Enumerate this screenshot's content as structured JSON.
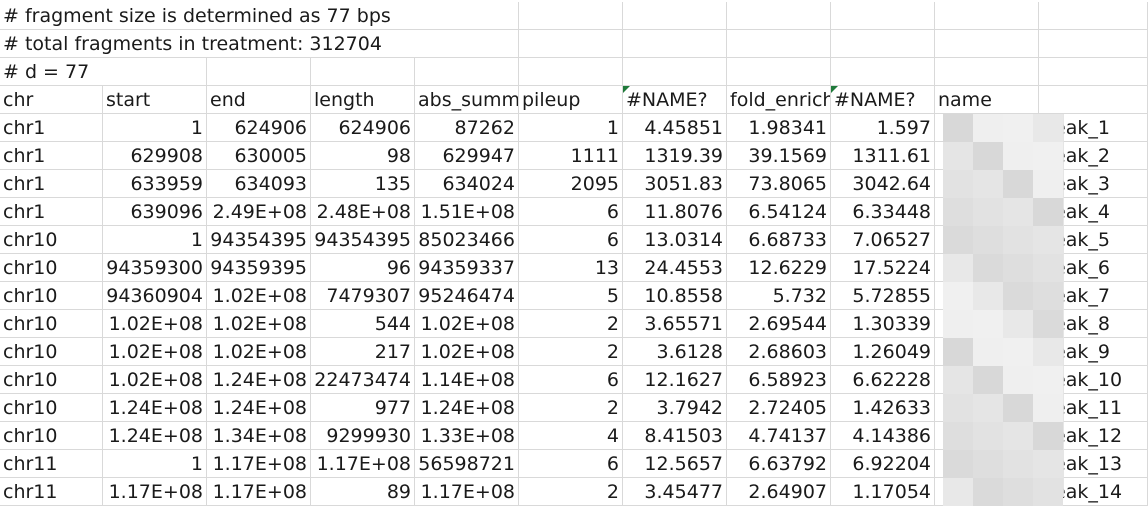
{
  "sheet": {
    "header_lines": [
      "# fragment size is determined as 77 bps",
      "# total fragments in treatment: 312704",
      "# d = 77"
    ],
    "columns": [
      "chr",
      "start",
      "end",
      "length",
      "abs_summ",
      "pileup",
      "#NAME?",
      "fold_enrich",
      "#NAME?",
      "name"
    ],
    "error_cells_marked": [
      6,
      8
    ],
    "rows": [
      [
        "chr1",
        "1",
        "624906",
        "624906",
        "87262",
        "1",
        "4.45851",
        "1.98341",
        "1.597",
        "peak_1"
      ],
      [
        "chr1",
        "629908",
        "630005",
        "98",
        "629947",
        "1111",
        "1319.39",
        "39.1569",
        "1311.61",
        "peak_2"
      ],
      [
        "chr1",
        "633959",
        "634093",
        "135",
        "634024",
        "2095",
        "3051.83",
        "73.8065",
        "3042.64",
        "peak_3"
      ],
      [
        "chr1",
        "639096",
        "2.49E+08",
        "2.48E+08",
        "1.51E+08",
        "6",
        "11.8076",
        "6.54124",
        "6.33448",
        "peak_4"
      ],
      [
        "chr10",
        "1",
        "94354395",
        "94354395",
        "85023466",
        "6",
        "13.0314",
        "6.68733",
        "7.06527",
        "peak_5"
      ],
      [
        "chr10",
        "94359300",
        "94359395",
        "96",
        "94359337",
        "13",
        "24.4553",
        "12.6229",
        "17.5224",
        "peak_6"
      ],
      [
        "chr10",
        "94360904",
        "1.02E+08",
        "7479307",
        "95246474",
        "5",
        "10.8558",
        "5.732",
        "5.72855",
        "peak_7"
      ],
      [
        "chr10",
        "1.02E+08",
        "1.02E+08",
        "544",
        "1.02E+08",
        "2",
        "3.65571",
        "2.69544",
        "1.30339",
        "peak_8"
      ],
      [
        "chr10",
        "1.02E+08",
        "1.02E+08",
        "217",
        "1.02E+08",
        "2",
        "3.6128",
        "2.68603",
        "1.26049",
        "peak_9"
      ],
      [
        "chr10",
        "1.02E+08",
        "1.24E+08",
        "22473474",
        "1.14E+08",
        "6",
        "12.1627",
        "6.58923",
        "6.62228",
        "peak_10"
      ],
      [
        "chr10",
        "1.24E+08",
        "1.24E+08",
        "977",
        "1.24E+08",
        "2",
        "3.7942",
        "2.72405",
        "1.42633",
        "peak_11"
      ],
      [
        "chr10",
        "1.24E+08",
        "1.34E+08",
        "9299930",
        "1.33E+08",
        "4",
        "8.41503",
        "4.74137",
        "4.14386",
        "peak_12"
      ],
      [
        "chr11",
        "1",
        "1.17E+08",
        "1.17E+08",
        "56598721",
        "6",
        "12.5657",
        "6.63792",
        "6.92204",
        "peak_13"
      ],
      [
        "chr11",
        "1.17E+08",
        "1.17E+08",
        "89",
        "1.17E+08",
        "2",
        "3.45477",
        "2.64907",
        "1.17054",
        "peak_14"
      ]
    ]
  },
  "colors": {
    "gridline": "#d9d9d9",
    "error_marker": "#1f7a3a",
    "text": "#1a1a1a"
  }
}
